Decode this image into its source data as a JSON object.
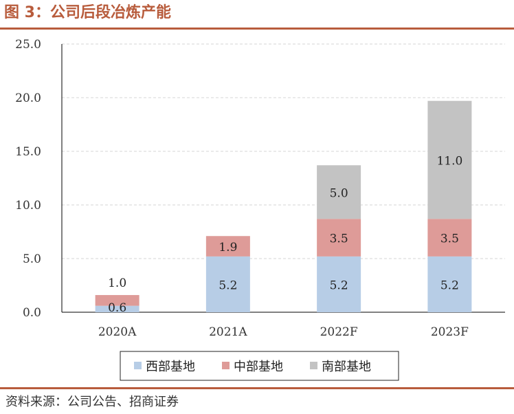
{
  "title": "图 3：公司后段冶炼产能",
  "source": "资料来源：公司公告、招商证券",
  "chart_data": {
    "type": "bar",
    "stacked": true,
    "categories": [
      "2020A",
      "2021A",
      "2022F",
      "2023F"
    ],
    "series": [
      {
        "name": "西部基地",
        "color": "#b7cde6",
        "values": [
          0.6,
          5.2,
          5.2,
          5.2
        ]
      },
      {
        "name": "中部基地",
        "color": "#de9b98",
        "values": [
          1.0,
          1.9,
          3.5,
          3.5
        ]
      },
      {
        "name": "南部基地",
        "color": "#c3c3c3",
        "values": [
          null,
          null,
          5.0,
          11.0
        ]
      }
    ],
    "ylim": [
      0,
      25
    ],
    "yticks": [
      "0.0",
      "5.0",
      "10.0",
      "15.0",
      "20.0",
      "25.0"
    ],
    "grid": true,
    "legend": "bottom"
  }
}
